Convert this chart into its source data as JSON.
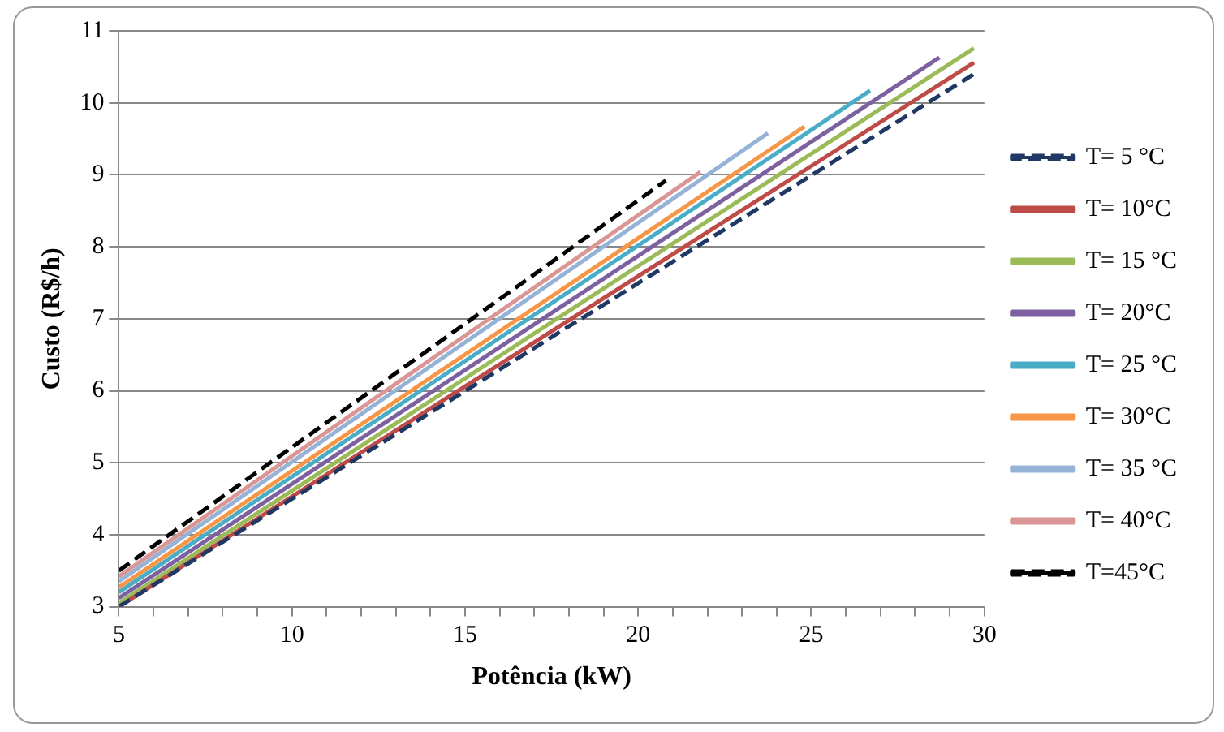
{
  "chart_data": {
    "type": "line",
    "xlabel": "Potência (kW)",
    "ylabel": "Custo (R$/h)",
    "xlim": [
      5,
      30
    ],
    "ylim": [
      3,
      11
    ],
    "xticks": [
      5,
      {
        "value": 6,
        "label": null
      },
      {
        "value": 7,
        "label": null
      },
      {
        "value": 8,
        "label": null
      },
      {
        "value": 9,
        "label": null
      },
      10,
      {
        "value": 11,
        "label": null
      },
      {
        "value": 12,
        "label": null
      },
      {
        "value": 13,
        "label": null
      },
      {
        "value": 14,
        "label": null
      },
      15,
      {
        "value": 16,
        "label": null
      },
      {
        "value": 17,
        "label": null
      },
      {
        "value": 18,
        "label": null
      },
      {
        "value": 19,
        "label": null
      },
      20,
      {
        "value": 21,
        "label": null
      },
      {
        "value": 22,
        "label": null
      },
      {
        "value": 23,
        "label": null
      },
      {
        "value": 24,
        "label": null
      },
      25,
      {
        "value": 26,
        "label": null
      },
      {
        "value": 27,
        "label": null
      },
      {
        "value": 28,
        "label": null
      },
      {
        "value": 29,
        "label": null
      },
      30
    ],
    "yticks": [
      3,
      4,
      5,
      6,
      7,
      8,
      9,
      10,
      11
    ],
    "grid": "y",
    "legend": "right",
    "marker": "none",
    "series": [
      {
        "name": "T= 5 °C",
        "color": "#1f3864",
        "line_style": "dashed",
        "x": [
          5,
          29.7
        ],
        "values": [
          3.0,
          10.4
        ]
      },
      {
        "name": "T= 10°C",
        "color": "#be4b48",
        "x": [
          5,
          29.7
        ],
        "values": [
          3.0,
          10.56
        ]
      },
      {
        "name": "T= 15 °C",
        "color": "#9bbb59",
        "x": [
          5,
          29.7
        ],
        "values": [
          3.05,
          10.76
        ]
      },
      {
        "name": "T= 20°C",
        "color": "#7d60a0",
        "x": [
          5,
          28.7
        ],
        "values": [
          3.12,
          10.63
        ]
      },
      {
        "name": "T= 25 °C",
        "color": "#4bacc6",
        "x": [
          5,
          26.7
        ],
        "values": [
          3.2,
          10.17
        ]
      },
      {
        "name": "T= 30°C",
        "color": "#f79646",
        "x": [
          5,
          24.8
        ],
        "values": [
          3.27,
          9.67
        ]
      },
      {
        "name": "T= 35 °C",
        "color": "#95b3d7",
        "x": [
          5,
          23.75
        ],
        "values": [
          3.35,
          9.58
        ]
      },
      {
        "name": "T= 40°C",
        "color": "#d99694",
        "x": [
          5,
          21.8
        ],
        "values": [
          3.42,
          9.04
        ]
      },
      {
        "name": "T=45°C",
        "color": "#000000",
        "line_style": "dashed",
        "x": [
          5,
          20.8
        ],
        "values": [
          3.5,
          8.92
        ]
      }
    ]
  }
}
